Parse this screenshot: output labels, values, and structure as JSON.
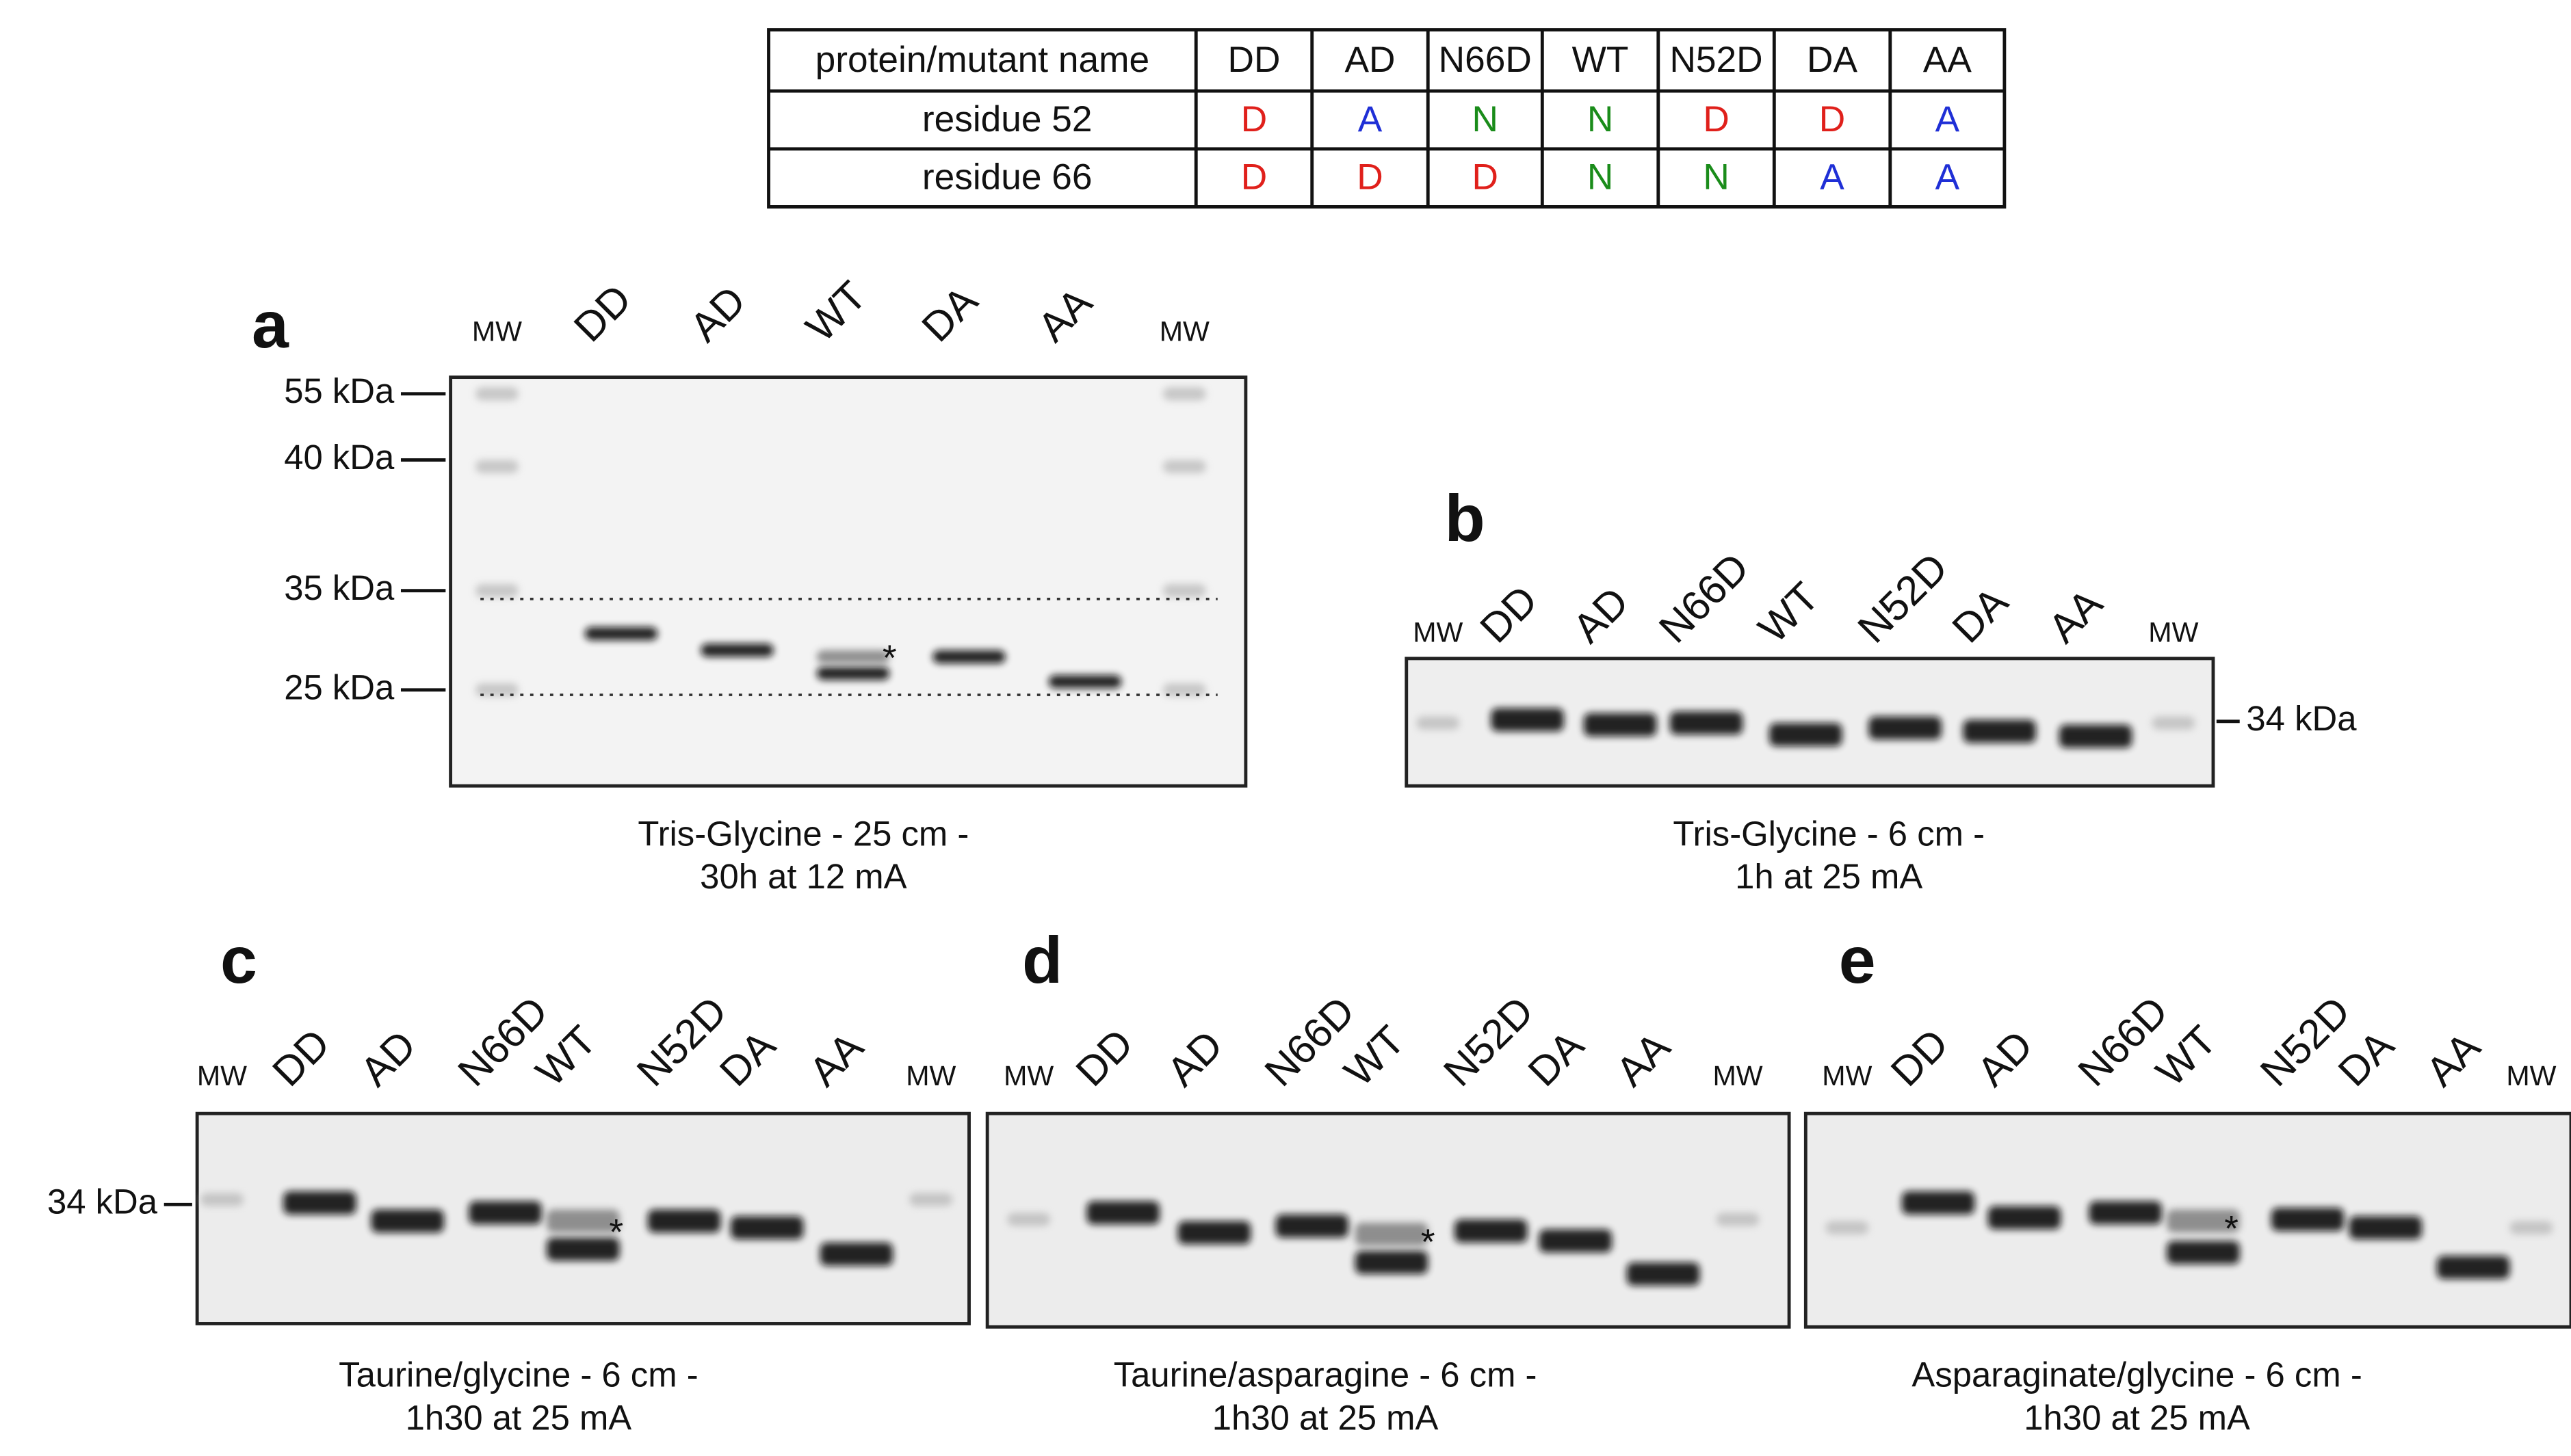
{
  "table": {
    "header": [
      "protein/mutant name",
      "DD",
      "AD",
      "N66D",
      "WT",
      "N52D",
      "DA",
      "AA"
    ],
    "rows": [
      [
        "residue 52",
        "D",
        "A",
        "N",
        "N",
        "D",
        "D",
        "A"
      ],
      [
        "residue 66",
        "D",
        "D",
        "D",
        "N",
        "N",
        "A",
        "A"
      ]
    ]
  },
  "panels": [
    {
      "letter": "a",
      "lanes": [
        "MW",
        "DD",
        "AD",
        "WT",
        "DA",
        "AA",
        "MW"
      ],
      "markers": [
        "55 kDa",
        "40 kDa",
        "35 kDa",
        "25 kDa"
      ],
      "asterisk": "*",
      "caption": [
        "Tris-Glycine - 25 cm -",
        "30h at 12 mA"
      ]
    },
    {
      "letter": "b",
      "lanes": [
        "MW",
        "DD",
        "AD",
        "N66D",
        "WT",
        "N52D",
        "DA",
        "AA",
        "MW"
      ],
      "markers": [
        "34 kDa"
      ],
      "caption": [
        "Tris-Glycine - 6 cm -",
        "1h at 25 mA"
      ]
    },
    {
      "letter": "c",
      "lanes": [
        "MW",
        "DD",
        "AD",
        "N66D",
        "WT",
        "N52D",
        "DA",
        "AA",
        "MW"
      ],
      "markers": [
        "34 kDa"
      ],
      "asterisk": "*",
      "caption": [
        "Taurine/glycine - 6 cm -",
        "1h30 at 25 mA"
      ]
    },
    {
      "letter": "d",
      "lanes": [
        "MW",
        "DD",
        "AD",
        "N66D",
        "WT",
        "N52D",
        "DA",
        "AA",
        "MW"
      ],
      "asterisk": "*",
      "caption": [
        "Taurine/asparagine - 6 cm -",
        "1h30 at 25 mA"
      ]
    },
    {
      "letter": "e",
      "lanes": [
        "MW",
        "DD",
        "AD",
        "N66D",
        "WT",
        "N52D",
        "DA",
        "AA",
        "MW"
      ],
      "asterisk": "*",
      "caption": [
        "Asparaginate/glycine - 6 cm -",
        "1h30 at 25 mA"
      ]
    }
  ]
}
